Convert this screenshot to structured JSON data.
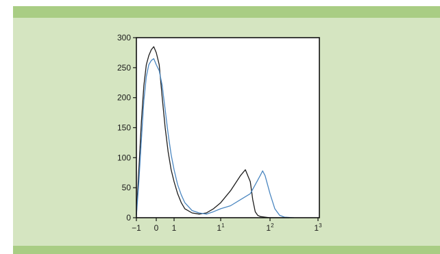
{
  "colors": {
    "panel_background": "#d5e5c1",
    "band": "#a9cd84",
    "plot_background": "#ffffff",
    "series_black": "#1c1c1c",
    "series_blue": "#4a86c0"
  },
  "chart_data": {
    "type": "line",
    "title": "",
    "xlabel": "",
    "ylabel": "",
    "xscale": "log-like (tick labels -1, 0, 1, 10^1, 10^2, 10^3)",
    "xlim": [
      -1,
      3
    ],
    "ylim": [
      0,
      300
    ],
    "grid": false,
    "legend": "none",
    "y_ticks": [
      "0",
      "50",
      "100",
      "150",
      "200",
      "250",
      "300"
    ],
    "x_ticks": [
      {
        "label": "−1",
        "sup": "",
        "value": -1
      },
      {
        "label": "0",
        "sup": "",
        "value": -0.6
      },
      {
        "label": "1",
        "sup": "",
        "value": -0.3
      },
      {
        "label": "1",
        "sup": "1",
        "value": 1
      },
      {
        "label": "1",
        "sup": "2",
        "value": 2
      },
      {
        "label": "1",
        "sup": "3",
        "value": 3
      }
    ],
    "series": [
      {
        "color_key": "series_black",
        "x": [
          -1.0,
          -0.95,
          -0.9,
          -0.85,
          -0.8,
          -0.75,
          -0.7,
          -0.65,
          -0.6,
          -0.55,
          -0.5,
          -0.45,
          -0.4,
          -0.35,
          -0.3,
          -0.2,
          -0.1,
          0.0,
          0.2,
          0.4,
          0.6,
          0.8,
          1.0,
          1.2,
          1.4,
          1.5,
          1.6,
          1.65,
          1.7,
          1.75,
          1.8,
          1.9,
          2.0,
          2.2,
          2.4
        ],
        "y": [
          5,
          80,
          160,
          220,
          255,
          270,
          280,
          285,
          275,
          255,
          200,
          150,
          110,
          80,
          60,
          40,
          25,
          15,
          8,
          6,
          8,
          15,
          25,
          45,
          70,
          80,
          60,
          30,
          10,
          4,
          2,
          1,
          0,
          0,
          0
        ]
      },
      {
        "color_key": "series_blue",
        "x": [
          -1.0,
          -0.95,
          -0.9,
          -0.85,
          -0.8,
          -0.75,
          -0.7,
          -0.65,
          -0.6,
          -0.55,
          -0.5,
          -0.45,
          -0.4,
          -0.35,
          -0.3,
          -0.2,
          -0.1,
          0.0,
          0.2,
          0.4,
          0.6,
          0.8,
          1.0,
          1.2,
          1.4,
          1.5,
          1.6,
          1.7,
          1.8,
          1.85,
          1.9,
          2.0,
          2.1,
          2.2,
          2.3,
          2.5
        ],
        "y": [
          3,
          60,
          130,
          195,
          235,
          255,
          262,
          265,
          255,
          245,
          220,
          180,
          140,
          105,
          80,
          55,
          38,
          25,
          12,
          8,
          6,
          10,
          15,
          20,
          30,
          35,
          40,
          55,
          70,
          78,
          70,
          40,
          15,
          4,
          1,
          0
        ]
      }
    ]
  }
}
